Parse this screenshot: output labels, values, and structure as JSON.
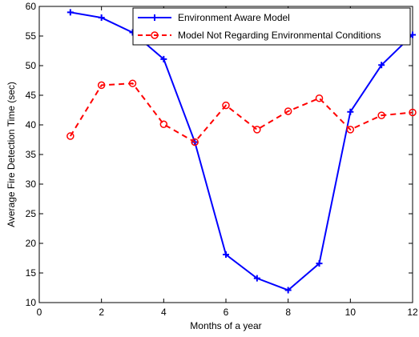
{
  "chart_data": {
    "type": "line",
    "title": "",
    "xlabel": "Months of a year",
    "ylabel": "Average Fire Detection Time (sec)",
    "xlim": [
      0,
      12
    ],
    "ylim": [
      10,
      60
    ],
    "x_ticks": [
      0,
      2,
      4,
      6,
      8,
      10,
      12
    ],
    "y_ticks": [
      10,
      15,
      20,
      25,
      30,
      35,
      40,
      45,
      50,
      55,
      60
    ],
    "grid": false,
    "legend_position": "top-right",
    "series": [
      {
        "name": "Environment Aware Model",
        "color": "#0000ff",
        "line_style": "solid",
        "marker": "plus",
        "x": [
          1,
          2,
          3,
          4,
          5,
          6,
          7,
          8,
          9,
          10,
          11,
          12
        ],
        "y": [
          59,
          58.1,
          55.6,
          51.1,
          37.1,
          18.1,
          14.1,
          12.1,
          16.6,
          42.2,
          50.1,
          55.2
        ]
      },
      {
        "name": "Model Not Regarding Environmental Conditions",
        "color": "#ff0000",
        "line_style": "dashed",
        "marker": "circle",
        "x": [
          1,
          2,
          3,
          4,
          5,
          6,
          7,
          8,
          9,
          10,
          11,
          12
        ],
        "y": [
          38.1,
          46.7,
          47.0,
          40.1,
          37.1,
          43.3,
          39.2,
          42.3,
          44.5,
          39.2,
          41.6,
          42.1
        ]
      }
    ]
  }
}
